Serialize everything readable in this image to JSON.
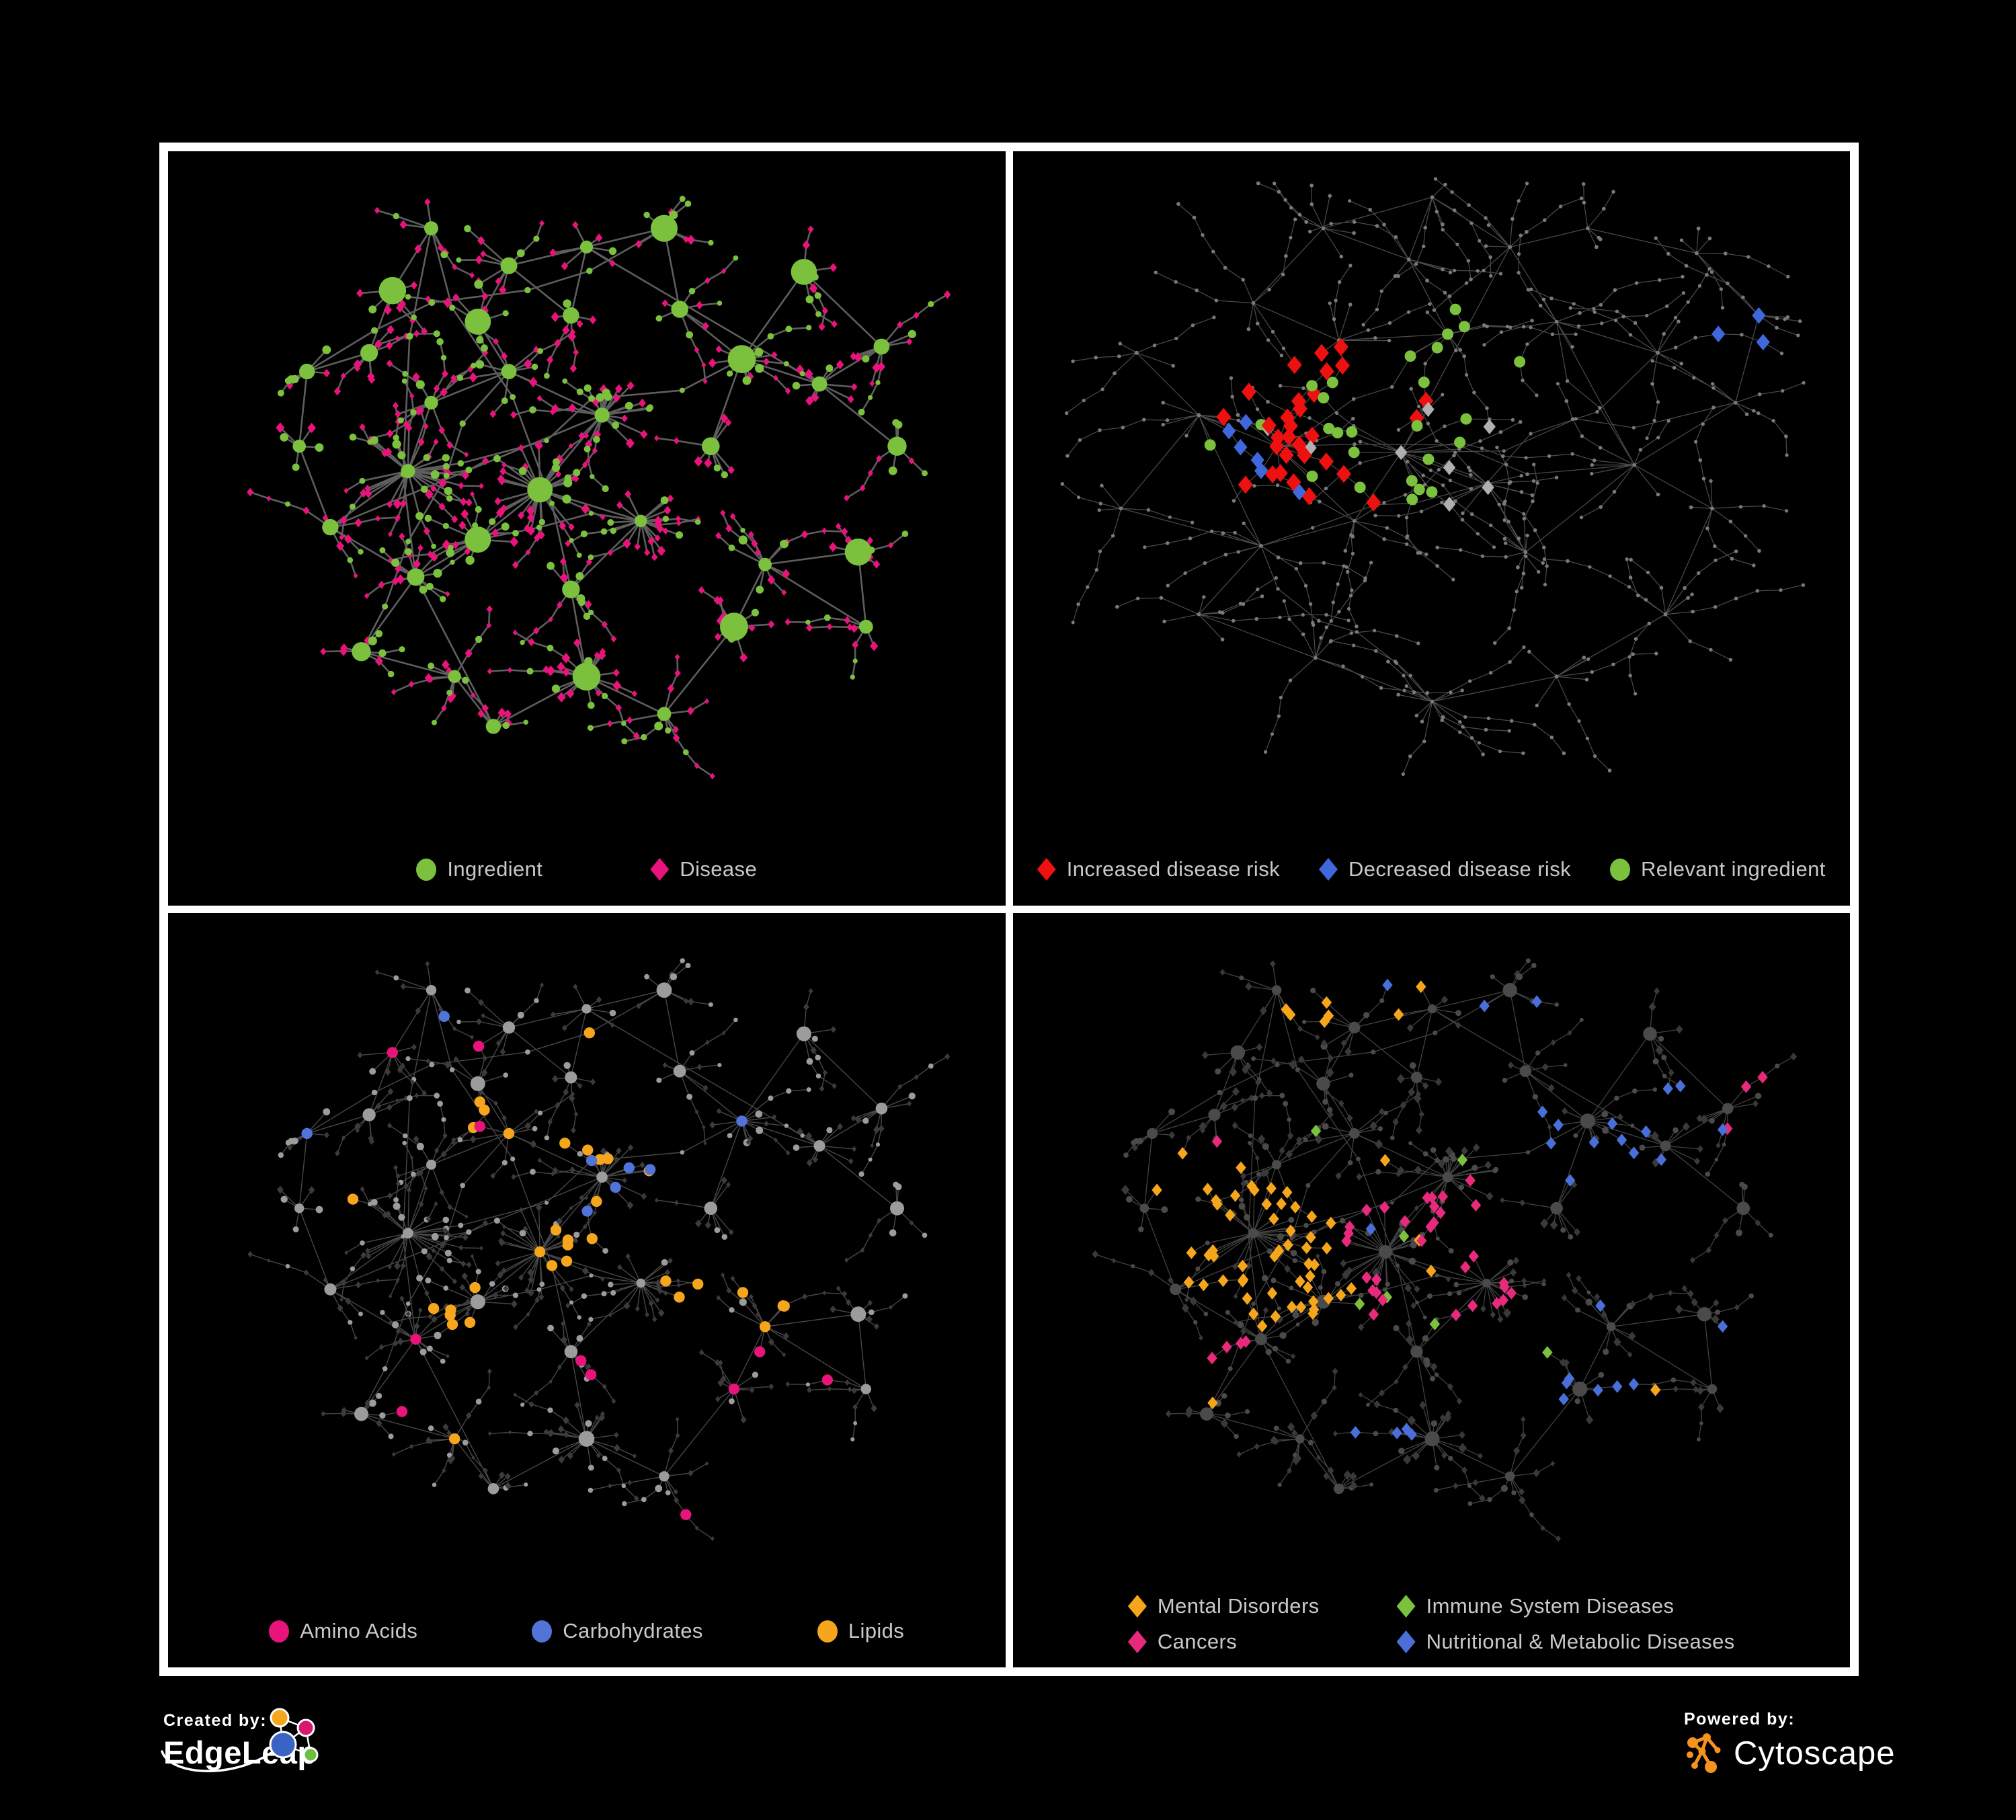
{
  "figure": {
    "background": "#000000",
    "frame_color": "#ffffff",
    "legend_text_color": "#c9c9c9"
  },
  "panels": [
    {
      "name": "ingredient-disease-network",
      "legend": [
        {
          "label": "Ingredient",
          "color": "#7cc13e",
          "shape": "circle"
        },
        {
          "label": "Disease",
          "color": "#e8137b",
          "shape": "diamond"
        }
      ],
      "colors": {
        "edge": "#6f6f6f",
        "ingredient": "#7cc13e",
        "disease": "#e8137b"
      }
    },
    {
      "name": "disease-risk-network",
      "legend": [
        {
          "label": "Increased disease risk",
          "color": "#ef1010",
          "shape": "diamond"
        },
        {
          "label": "Decreased disease risk",
          "color": "#3f68dd",
          "shape": "diamond"
        },
        {
          "label": "Relevant ingredient",
          "color": "#7cc13e",
          "shape": "circle"
        }
      ],
      "colors": {
        "edge": "#5d5d5d",
        "base_node": "#7a7a7a",
        "neutral_diamond": "#b0b0b0",
        "increased": "#ef1010",
        "decreased": "#3f68dd",
        "relevant": "#7cc13e"
      }
    },
    {
      "name": "nutrient-groups-network",
      "legend": [
        {
          "label": "Amino Acids",
          "color": "#e8137b",
          "shape": "circle"
        },
        {
          "label": "Carbohydrates",
          "color": "#5273d8",
          "shape": "circle"
        },
        {
          "label": "Lipids",
          "color": "#f5a61c",
          "shape": "circle"
        }
      ],
      "colors": {
        "edge": "#5f5f5f",
        "base_circle": "#9c9c9c",
        "base_diamond": "#3b3b3b",
        "amino_acids": "#e8137b",
        "carbohydrates": "#5273d8",
        "lipids": "#f5a61c"
      }
    },
    {
      "name": "disease-categories-network",
      "legend": [
        {
          "label": "Mental Disorders",
          "color": "#f5a61c",
          "shape": "diamond"
        },
        {
          "label": "Immune System Diseases",
          "color": "#7cc13e",
          "shape": "diamond"
        },
        {
          "label": "Cancers",
          "color": "#e82a7c",
          "shape": "diamond"
        },
        {
          "label": "Nutritional & Metabolic Diseases",
          "color": "#4a6fd9",
          "shape": "diamond"
        }
      ],
      "colors": {
        "edge": "#585858",
        "base_circle": "#4a4a4a",
        "base_diamond": "#393939",
        "mental": "#f5a61c",
        "immune": "#7cc13e",
        "cancers": "#e82a7c",
        "nutritional": "#4a6fd9"
      }
    }
  ],
  "footer": {
    "created_by_label": "Created by:",
    "created_by_name": "EdgeLeap",
    "powered_by_label": "Powered by:",
    "powered_by_name": "Cytoscape",
    "cytoscape_orange": "#f6921e",
    "edgeleap_node_colors": [
      "#f5a61c",
      "#d6186e",
      "#3b63c4",
      "#6fbe3f"
    ]
  }
}
